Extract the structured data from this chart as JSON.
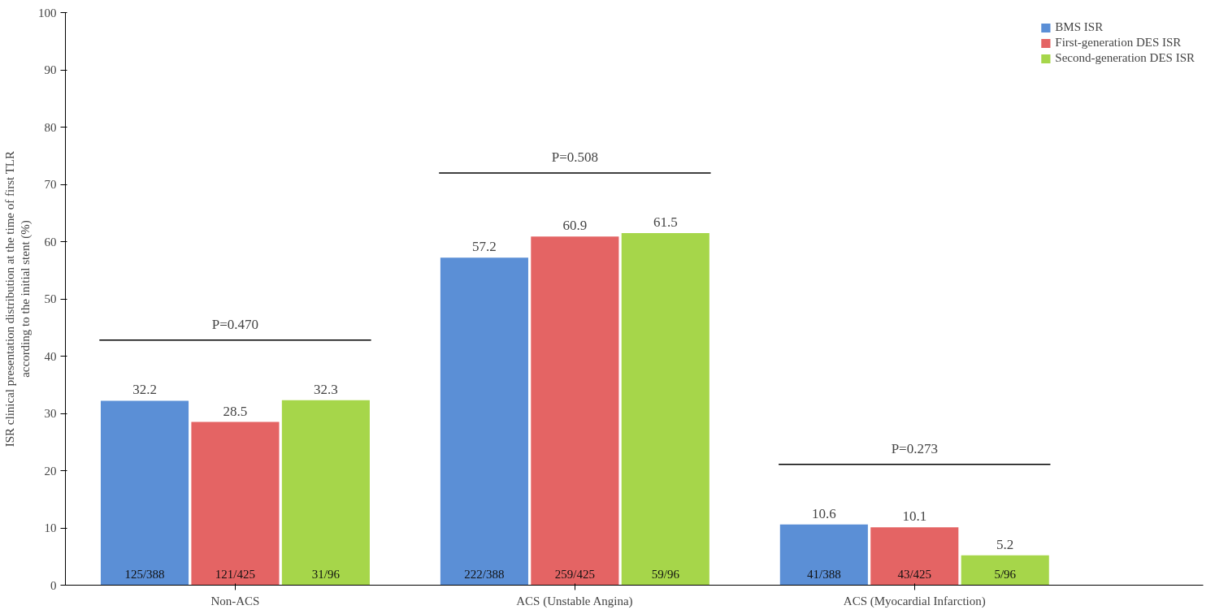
{
  "chart_data": {
    "type": "bar",
    "ylabel": "ISR clinical presentation distribution at the time of first TLR\naccording to the initial stent (%)",
    "categories": [
      "Non-ACS",
      "ACS (Unstable Angina)",
      "ACS (Myocardial Infarction)"
    ],
    "series": [
      {
        "name": "BMS ISR",
        "color": "#5b8fd6",
        "values": [
          32.2,
          57.2,
          10.6
        ]
      },
      {
        "name": "First-generation DES ISR",
        "color": "#e46464",
        "values": [
          28.5,
          60.9,
          10.1
        ]
      },
      {
        "name": "Second-generation DES ISR",
        "color": "#a6d64a",
        "values": [
          32.3,
          61.5,
          5.2
        ]
      }
    ],
    "data_labels": true,
    "annotations": [
      "P=0.470",
      "P=0.508",
      "P=0.273",
      "125/388",
      "121/425",
      "31/96",
      "222/388",
      "259/425",
      "59/96",
      "41/388",
      "43/425",
      "5/96"
    ],
    "ylim": [
      0,
      100
    ],
    "yticks": [
      0,
      10,
      20,
      30,
      40,
      50,
      60,
      70,
      80,
      90,
      100
    ],
    "grid": false,
    "legend": "top right"
  }
}
